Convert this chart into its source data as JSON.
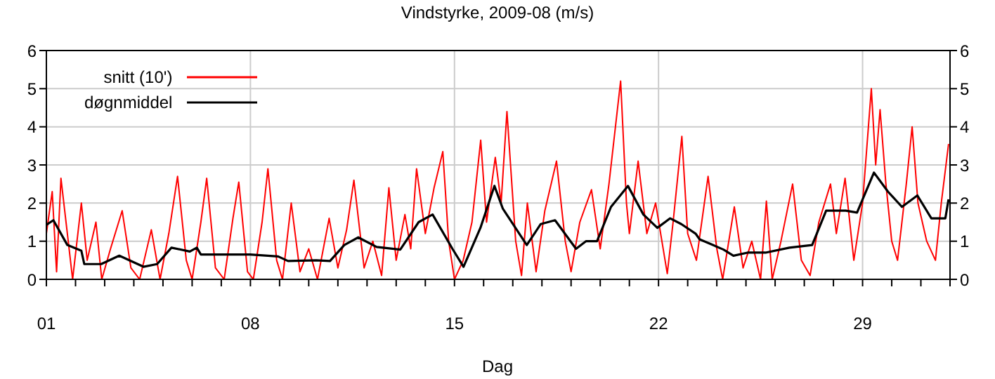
{
  "chart_data": {
    "type": "line",
    "title": "Vindstyrke, 2009-08 (m/s)",
    "xlabel": "Dag",
    "xlim": [
      1,
      32
    ],
    "xticks": [
      {
        "value": 1,
        "label": "01"
      },
      {
        "value": 2,
        "label": null
      },
      {
        "value": 3,
        "label": null
      },
      {
        "value": 4,
        "label": null
      },
      {
        "value": 5,
        "label": null
      },
      {
        "value": 6,
        "label": null
      },
      {
        "value": 7,
        "label": null
      },
      {
        "value": 8,
        "label": "08"
      },
      {
        "value": 9,
        "label": null
      },
      {
        "value": 10,
        "label": null
      },
      {
        "value": 11,
        "label": null
      },
      {
        "value": 12,
        "label": null
      },
      {
        "value": 13,
        "label": null
      },
      {
        "value": 14,
        "label": null
      },
      {
        "value": 15,
        "label": "15"
      },
      {
        "value": 16,
        "label": null
      },
      {
        "value": 17,
        "label": null
      },
      {
        "value": 18,
        "label": null
      },
      {
        "value": 19,
        "label": null
      },
      {
        "value": 20,
        "label": null
      },
      {
        "value": 21,
        "label": null
      },
      {
        "value": 22,
        "label": "22"
      },
      {
        "value": 23,
        "label": null
      },
      {
        "value": 24,
        "label": null
      },
      {
        "value": 25,
        "label": null
      },
      {
        "value": 26,
        "label": null
      },
      {
        "value": 27,
        "label": null
      },
      {
        "value": 28,
        "label": null
      },
      {
        "value": 29,
        "label": "29"
      },
      {
        "value": 30,
        "label": null
      },
      {
        "value": 31,
        "label": null
      },
      {
        "value": 32,
        "label": null
      }
    ],
    "ylim": [
      0,
      6
    ],
    "yticks": [
      0,
      1,
      2,
      3,
      4,
      5,
      6
    ],
    "y2lim": [
      0,
      6
    ],
    "y2ticks": [
      0,
      1,
      2,
      3,
      4,
      5,
      6
    ],
    "grid": true,
    "legend": "top left",
    "marker": "none",
    "line_style": "solid",
    "series": [
      {
        "name": "snitt (10')",
        "color": "#ff0000",
        "x": [
          1.0,
          1.2,
          1.35,
          1.5,
          1.75,
          1.9,
          2.2,
          2.4,
          2.7,
          2.9,
          3.2,
          3.6,
          3.9,
          4.2,
          4.6,
          4.9,
          5.2,
          5.5,
          5.8,
          6.0,
          6.3,
          6.5,
          6.8,
          7.1,
          7.4,
          7.6,
          7.9,
          8.1,
          8.4,
          8.6,
          8.9,
          9.1,
          9.4,
          9.7,
          10.0,
          10.3,
          10.7,
          11.0,
          11.3,
          11.55,
          11.9,
          12.2,
          12.5,
          12.75,
          13.0,
          13.3,
          13.5,
          13.7,
          14.0,
          14.3,
          14.6,
          14.8,
          15.0,
          15.3,
          15.6,
          15.9,
          16.1,
          16.4,
          16.6,
          16.8,
          17.1,
          17.3,
          17.5,
          17.8,
          18.1,
          18.5,
          18.8,
          19.0,
          19.3,
          19.7,
          20.0,
          20.3,
          20.7,
          20.9,
          21.0,
          21.3,
          21.6,
          21.9,
          22.3,
          22.5,
          22.8,
          23.0,
          23.3,
          23.7,
          24.0,
          24.2,
          24.6,
          24.9,
          25.2,
          25.5,
          25.7,
          25.9,
          26.2,
          26.6,
          26.9,
          27.2,
          27.5,
          27.9,
          28.1,
          28.4,
          28.7,
          29.0,
          29.3,
          29.45,
          29.6,
          29.8,
          30.0,
          30.2,
          30.5,
          30.7,
          30.9,
          31.2,
          31.5,
          31.7,
          31.95
        ],
        "values": [
          1.2,
          2.3,
          0.2,
          2.65,
          1.0,
          0.0,
          2.0,
          0.5,
          1.5,
          0.0,
          0.8,
          1.8,
          0.3,
          0.0,
          1.3,
          0.0,
          1.2,
          2.7,
          0.5,
          0.0,
          1.5,
          2.65,
          0.3,
          0.0,
          1.6,
          2.55,
          0.2,
          0.0,
          1.5,
          2.9,
          0.5,
          0.0,
          2.0,
          0.2,
          0.8,
          0.0,
          1.6,
          0.3,
          1.3,
          2.6,
          0.3,
          1.0,
          0.1,
          2.4,
          0.5,
          1.7,
          0.8,
          2.9,
          1.2,
          2.4,
          3.35,
          1.0,
          0.0,
          0.5,
          1.5,
          3.65,
          1.5,
          3.2,
          2.0,
          4.4,
          1.0,
          0.1,
          2.0,
          0.2,
          1.8,
          3.1,
          1.0,
          0.2,
          1.5,
          2.35,
          0.8,
          2.5,
          5.2,
          2.0,
          1.2,
          3.1,
          1.2,
          2.0,
          0.15,
          1.5,
          3.75,
          1.2,
          0.5,
          2.7,
          0.8,
          0.0,
          1.9,
          0.3,
          1.0,
          0.0,
          2.05,
          0.0,
          1.0,
          2.5,
          0.5,
          0.1,
          1.5,
          2.5,
          1.2,
          2.65,
          0.5,
          2.0,
          5.0,
          3.0,
          4.45,
          2.5,
          1.0,
          0.5,
          2.5,
          4.0,
          2.0,
          1.0,
          0.5,
          2.0,
          3.55
        ]
      },
      {
        "name": "døgnmiddel",
        "color": "#000000",
        "x": [
          1.0,
          1.24,
          1.72,
          2.2,
          2.3,
          2.88,
          3.5,
          4.33,
          4.8,
          5.29,
          5.92,
          6.16,
          6.3,
          7.99,
          8.95,
          9.29,
          10.25,
          10.73,
          11.22,
          11.7,
          12.33,
          13.14,
          13.77,
          14.25,
          14.93,
          15.31,
          15.89,
          16.37,
          16.66,
          17.48,
          17.96,
          18.45,
          19.17,
          19.51,
          19.89,
          20.37,
          20.95,
          21.48,
          21.96,
          22.4,
          22.78,
          23.27,
          23.41,
          24.23,
          24.57,
          25.05,
          25.67,
          26.49,
          27.27,
          27.75,
          28.42,
          28.81,
          29.39,
          29.87,
          30.35,
          30.88,
          31.36,
          31.84,
          31.95
        ],
        "values": [
          1.43,
          1.55,
          0.9,
          0.75,
          0.4,
          0.4,
          0.62,
          0.33,
          0.4,
          0.83,
          0.73,
          0.83,
          0.65,
          0.65,
          0.6,
          0.48,
          0.5,
          0.48,
          0.9,
          1.1,
          0.85,
          0.78,
          1.5,
          1.7,
          0.8,
          0.33,
          1.35,
          2.45,
          1.85,
          0.9,
          1.45,
          1.55,
          0.8,
          1.0,
          1.0,
          1.9,
          2.45,
          1.7,
          1.35,
          1.6,
          1.45,
          1.2,
          1.05,
          0.78,
          0.62,
          0.7,
          0.7,
          0.83,
          0.9,
          1.8,
          1.8,
          1.75,
          2.8,
          2.3,
          1.9,
          2.2,
          1.6,
          1.6,
          2.1
        ]
      }
    ]
  }
}
